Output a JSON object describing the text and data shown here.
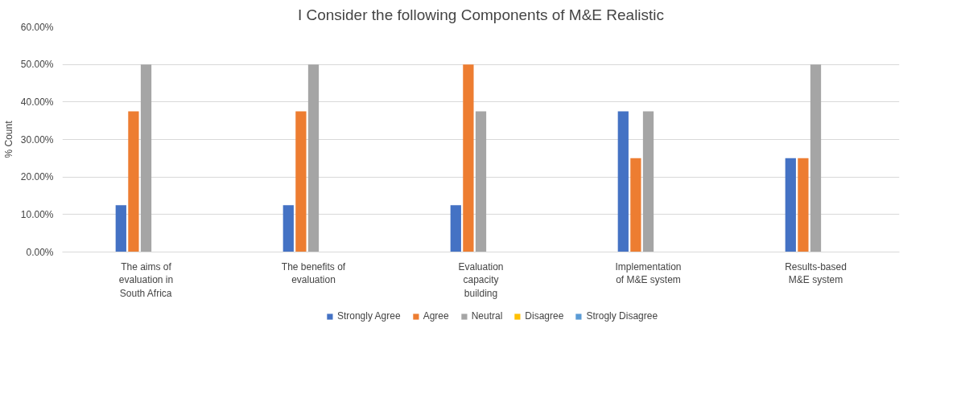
{
  "chart_data": {
    "type": "bar",
    "title": "I Consider the following Components of M&E Realistic",
    "ylabel": "% Count",
    "categories": [
      "The aims of evaluation in South Africa",
      "The benefits of evaluation",
      "Evaluation capacity building",
      "Implementation of M&E system",
      "Results-based M&E system"
    ],
    "series": [
      {
        "name": "Strongly Agree",
        "color": "#4472c4",
        "values": [
          12.5,
          12.5,
          12.5,
          37.5,
          25
        ]
      },
      {
        "name": "Agree",
        "color": "#ed7d31",
        "values": [
          37.5,
          37.5,
          50,
          25,
          25
        ]
      },
      {
        "name": "Neutral",
        "color": "#a5a5a5",
        "values": [
          50,
          50,
          37.5,
          37.5,
          50
        ]
      },
      {
        "name": "Disagree",
        "color": "#ffc000",
        "values": [
          0,
          0,
          0,
          0,
          0
        ]
      },
      {
        "name": "Strogly Disagree",
        "color": "#5b9bd5",
        "values": [
          0,
          0,
          0,
          0,
          0
        ]
      }
    ],
    "ylim": [
      0,
      60
    ],
    "yticks": [
      {
        "value": 0,
        "label": "0.00%"
      },
      {
        "value": 10,
        "label": "10.00%"
      },
      {
        "value": 20,
        "label": "20.00%"
      },
      {
        "value": 30,
        "label": "30.00%"
      },
      {
        "value": 40,
        "label": "40.00%"
      },
      {
        "value": 50,
        "label": "50.00%"
      },
      {
        "value": 60,
        "label": "60.00%"
      }
    ],
    "grid": "y",
    "legend": "bottom"
  }
}
